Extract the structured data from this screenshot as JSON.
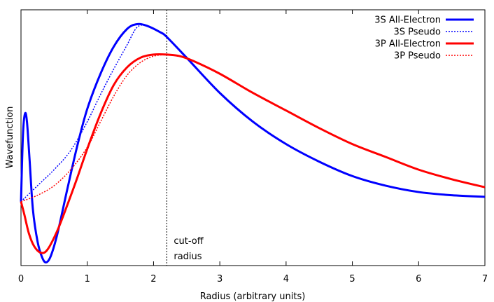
{
  "chart_data": {
    "type": "line",
    "title": "",
    "xlabel": "Radius (arbitrary units)",
    "ylabel": "Wavefunction",
    "xlim": [
      0,
      7
    ],
    "ylim": [
      -0.4,
      1.2
    ],
    "x_ticks": [
      "0",
      "1",
      "2",
      "3",
      "4",
      "5",
      "6",
      "7"
    ],
    "y_ticks": [],
    "grid": false,
    "legend_position": "top-right",
    "annotations": [
      {
        "type": "vertical-line",
        "x": 2.2,
        "style": "dotted",
        "text": [
          "cut-off",
          "radius"
        ]
      }
    ],
    "series": [
      {
        "name": "3S All-Electron",
        "color": "#0000ff",
        "dash": "solid",
        "points": [
          [
            0,
            0
          ],
          [
            0.03,
            0.42
          ],
          [
            0.06,
            0.55
          ],
          [
            0.09,
            0.5
          ],
          [
            0.13,
            0.26
          ],
          [
            0.18,
            -0.05
          ],
          [
            0.25,
            -0.25
          ],
          [
            0.32,
            -0.35
          ],
          [
            0.38,
            -0.38
          ],
          [
            0.45,
            -0.34
          ],
          [
            0.55,
            -0.2
          ],
          [
            0.7,
            0.08
          ],
          [
            0.85,
            0.35
          ],
          [
            1,
            0.58
          ],
          [
            1.2,
            0.8
          ],
          [
            1.4,
            0.97
          ],
          [
            1.6,
            1.08
          ],
          [
            1.75,
            1.11
          ],
          [
            1.9,
            1.1
          ],
          [
            2.1,
            1.06
          ],
          [
            2.2,
            1.03
          ],
          [
            2.5,
            0.9
          ],
          [
            3,
            0.68
          ],
          [
            3.5,
            0.5
          ],
          [
            4,
            0.36
          ],
          [
            4.5,
            0.25
          ],
          [
            5,
            0.16
          ],
          [
            5.5,
            0.1
          ],
          [
            6,
            0.06
          ],
          [
            6.5,
            0.04
          ],
          [
            7,
            0.03
          ]
        ]
      },
      {
        "name": "3S Pseudo",
        "color": "#0000ff",
        "dash": "dotted",
        "points": [
          [
            0,
            0
          ],
          [
            0.25,
            0.1
          ],
          [
            0.5,
            0.2
          ],
          [
            0.75,
            0.32
          ],
          [
            1,
            0.5
          ],
          [
            1.2,
            0.67
          ],
          [
            1.4,
            0.83
          ],
          [
            1.6,
            0.98
          ],
          [
            1.75,
            1.09
          ],
          [
            1.9,
            1.1
          ],
          [
            2.1,
            1.06
          ],
          [
            2.2,
            1.03
          ]
        ]
      },
      {
        "name": "3P All-Electron",
        "color": "#ff0000",
        "dash": "solid",
        "points": [
          [
            0,
            0
          ],
          [
            0.05,
            -0.08
          ],
          [
            0.12,
            -0.2
          ],
          [
            0.2,
            -0.28
          ],
          [
            0.3,
            -0.32
          ],
          [
            0.4,
            -0.3
          ],
          [
            0.55,
            -0.18
          ],
          [
            0.7,
            -0.02
          ],
          [
            0.85,
            0.15
          ],
          [
            1,
            0.33
          ],
          [
            1.2,
            0.55
          ],
          [
            1.4,
            0.73
          ],
          [
            1.6,
            0.84
          ],
          [
            1.8,
            0.9
          ],
          [
            2,
            0.92
          ],
          [
            2.2,
            0.92
          ],
          [
            2.4,
            0.91
          ],
          [
            2.6,
            0.88
          ],
          [
            3,
            0.8
          ],
          [
            3.5,
            0.68
          ],
          [
            4,
            0.57
          ],
          [
            4.5,
            0.46
          ],
          [
            5,
            0.36
          ],
          [
            5.5,
            0.28
          ],
          [
            6,
            0.2
          ],
          [
            6.5,
            0.14
          ],
          [
            7,
            0.09
          ]
        ]
      },
      {
        "name": "3P Pseudo",
        "color": "#ff0000",
        "dash": "dotted",
        "points": [
          [
            0,
            0
          ],
          [
            0.25,
            0.04
          ],
          [
            0.5,
            0.1
          ],
          [
            0.75,
            0.2
          ],
          [
            1,
            0.34
          ],
          [
            1.2,
            0.5
          ],
          [
            1.4,
            0.66
          ],
          [
            1.6,
            0.79
          ],
          [
            1.8,
            0.87
          ],
          [
            2,
            0.91
          ],
          [
            2.2,
            0.92
          ]
        ]
      }
    ]
  }
}
